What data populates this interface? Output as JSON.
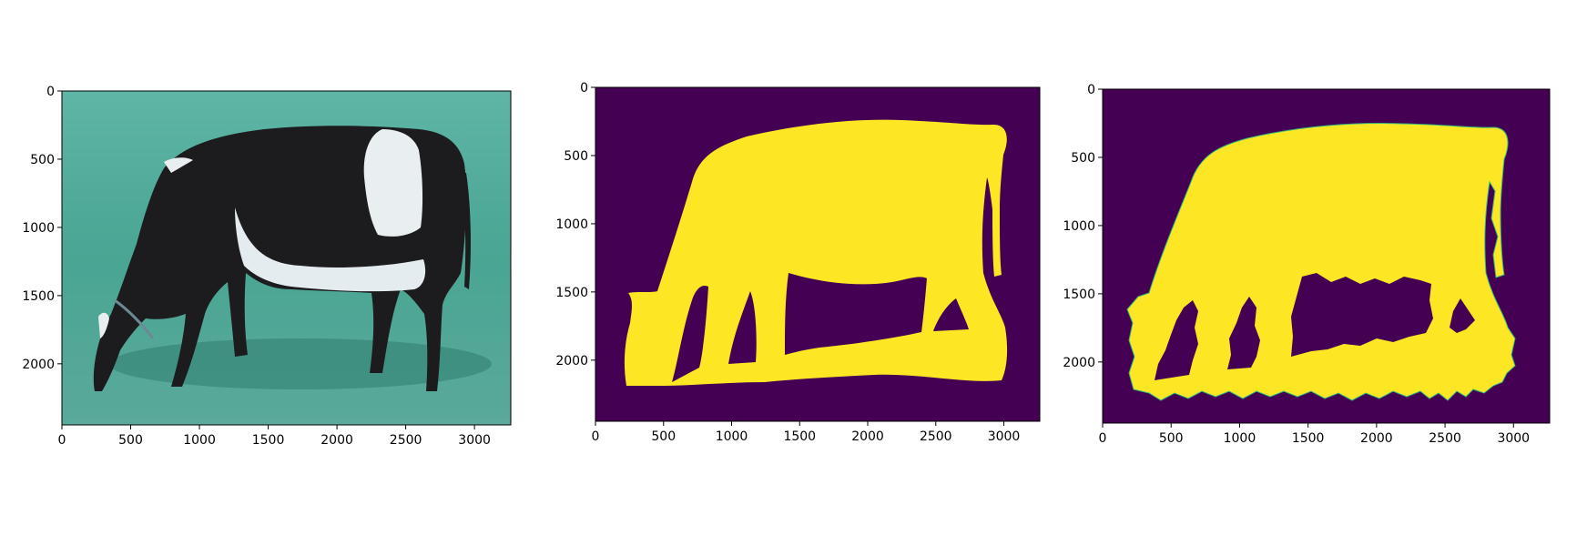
{
  "colors": {
    "mask_background": "#440154",
    "mask_foreground": "#fde725",
    "mask_edge": "#35b779",
    "grass": "#4fa898",
    "cow_black": "#1c1c1e",
    "cow_white": "#e9eff0"
  },
  "chart_data": [
    {
      "type": "image",
      "content": "photo of grazing black-and-white cow on grass (colour channels swapped)",
      "xlim": [
        0,
        3264
      ],
      "ylim": [
        2448,
        0
      ],
      "xticks": [
        0,
        500,
        1000,
        1500,
        2000,
        2500,
        3000
      ],
      "yticks": [
        0,
        500,
        1000,
        1500,
        2000
      ],
      "xtick_labels": [
        "0",
        "500",
        "1000",
        "1500",
        "2000",
        "2500",
        "3000"
      ],
      "ytick_labels": [
        "0",
        "500",
        "1000",
        "1500",
        "2000"
      ]
    },
    {
      "type": "heatmap",
      "content": "binary segmentation mask of the cow (smooth)",
      "colormap": "viridis",
      "xlim": [
        0,
        3264
      ],
      "ylim": [
        2448,
        0
      ],
      "xticks": [
        0,
        500,
        1000,
        1500,
        2000,
        2500,
        3000
      ],
      "yticks": [
        0,
        500,
        1000,
        1500,
        2000
      ],
      "xtick_labels": [
        "0",
        "500",
        "1000",
        "1500",
        "2000",
        "2500",
        "3000"
      ],
      "ytick_labels": [
        "0",
        "500",
        "1000",
        "1500",
        "2000"
      ]
    },
    {
      "type": "heatmap",
      "content": "binary segmentation mask of the cow (noisy edges)",
      "colormap": "viridis",
      "xlim": [
        0,
        3264
      ],
      "ylim": [
        2448,
        0
      ],
      "xticks": [
        0,
        500,
        1000,
        1500,
        2000,
        2500,
        3000
      ],
      "yticks": [
        0,
        500,
        1000,
        1500,
        2000
      ],
      "xtick_labels": [
        "0",
        "500",
        "1000",
        "1500",
        "2000",
        "2500",
        "3000"
      ],
      "ytick_labels": [
        "0",
        "500",
        "1000",
        "1500",
        "2000"
      ]
    }
  ]
}
